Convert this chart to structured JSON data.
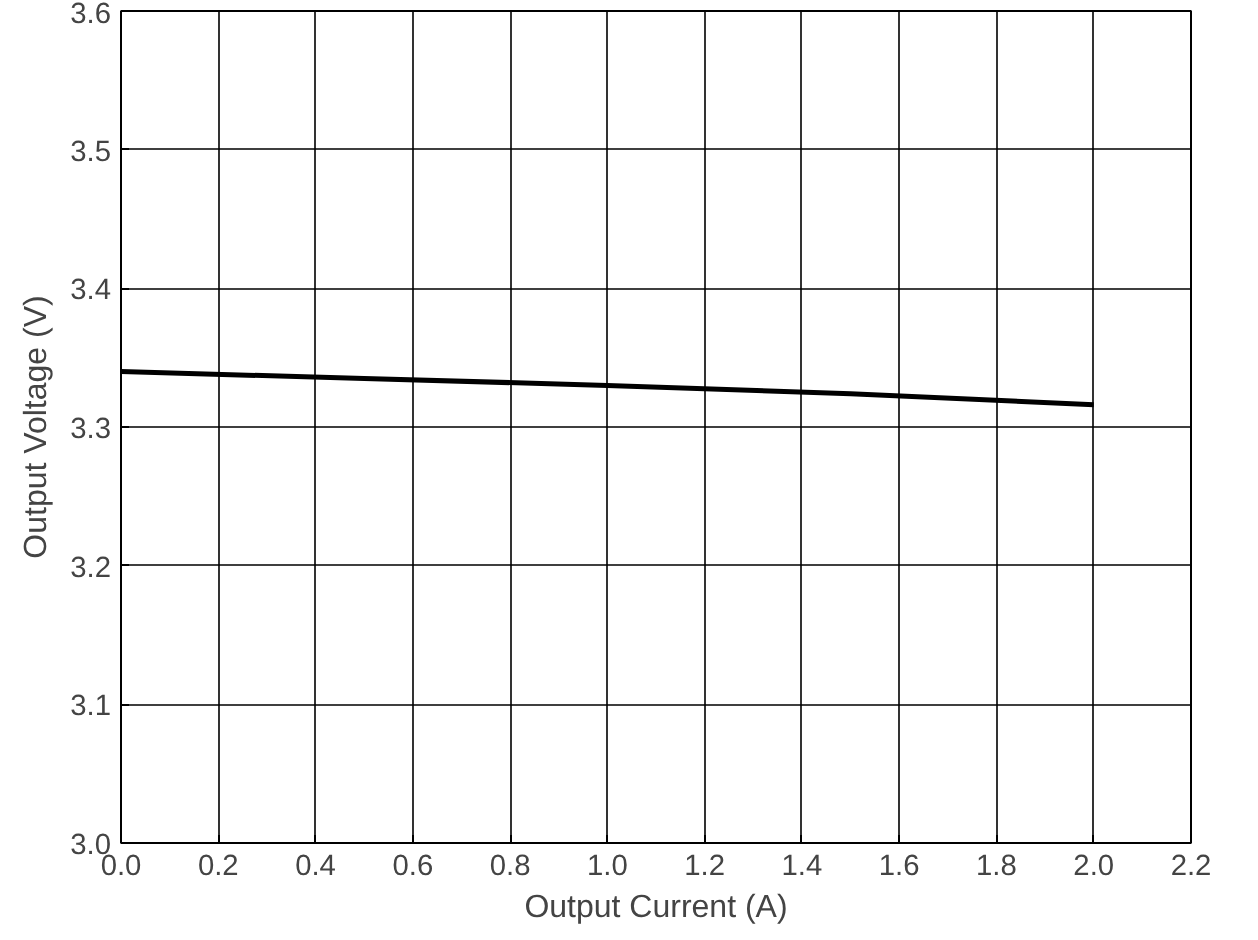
{
  "chart_data": {
    "type": "line",
    "xlabel": "Output Current (A)",
    "ylabel": "Output Voltage (V)",
    "x": [
      0,
      0.5,
      1.0,
      1.5,
      2.0
    ],
    "series": [
      {
        "color": "#000000",
        "values": [
          3.34,
          3.335,
          3.33,
          3.324,
          3.316
        ]
      }
    ],
    "xlim": [
      0,
      2.2
    ],
    "xticks": [
      {
        "value": 0,
        "label": "0.0"
      },
      0.2,
      0.4,
      0.6,
      0.8,
      {
        "value": 1,
        "label": "1.0"
      },
      1.2,
      1.4,
      1.6,
      1.8,
      {
        "value": 2,
        "label": "2.0"
      },
      2.2
    ],
    "ylim": [
      3.0,
      3.6
    ],
    "yticks": [
      {
        "value": 3.0,
        "label": "3.0"
      },
      3.1,
      3.2,
      3.3,
      3.4,
      3.5,
      3.6
    ],
    "grid": true,
    "marker": "none",
    "line_style": "solid"
  }
}
